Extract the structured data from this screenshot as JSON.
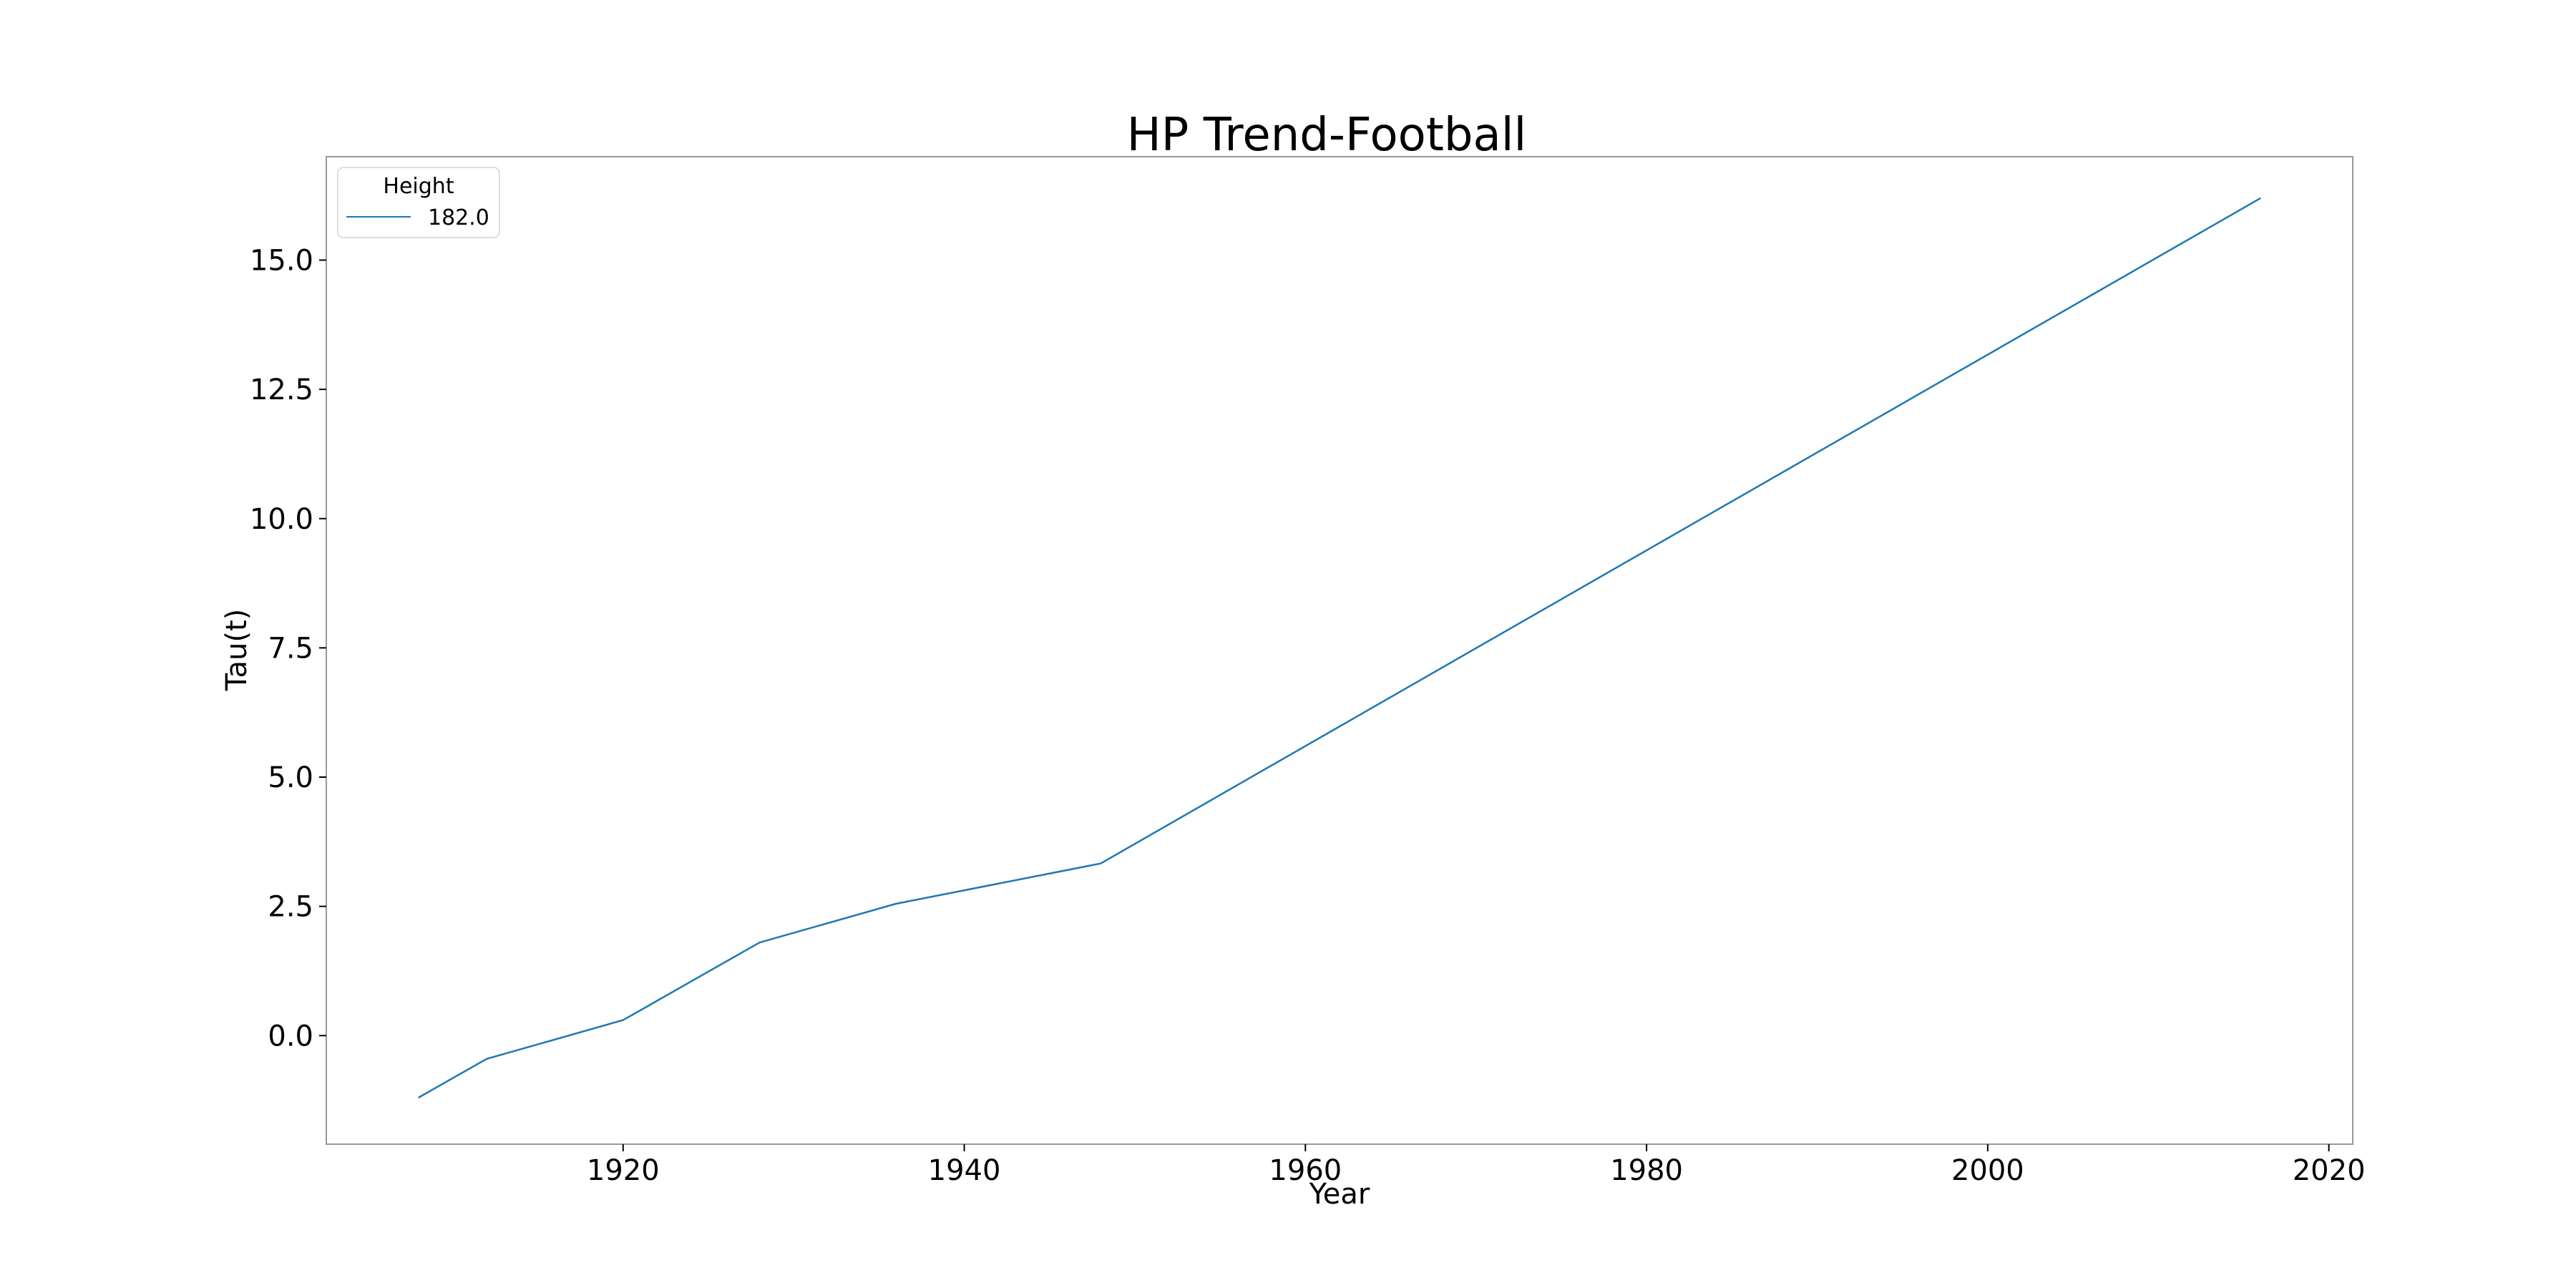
{
  "chart_data": {
    "type": "line",
    "title": "HP Trend-Football",
    "xlabel": "Year",
    "ylabel": "Tau(t)",
    "xlim": [
      1902.6,
      2021.4
    ],
    "ylim": [
      -2.1,
      17.0
    ],
    "xticks": [
      1920,
      1940,
      1960,
      1980,
      2000,
      2020
    ],
    "xtick_labels": [
      "1920",
      "1940",
      "1960",
      "1980",
      "2000",
      "2020"
    ],
    "yticks": [
      0.0,
      2.5,
      5.0,
      7.5,
      10.0,
      12.5,
      15.0
    ],
    "ytick_labels": [
      "0.0",
      "2.5",
      "5.0",
      "7.5",
      "10.0",
      "12.5",
      "15.0"
    ],
    "grid": false,
    "legend": {
      "title": "Height",
      "placement": "top-left"
    },
    "series": [
      {
        "name": "182.0",
        "color": "#1f77b4",
        "x": [
          1908,
          1912,
          1920,
          1928,
          1936,
          1948,
          2016
        ],
        "y": [
          -1.2,
          -0.45,
          0.3,
          1.8,
          2.55,
          3.33,
          16.2
        ]
      }
    ]
  }
}
